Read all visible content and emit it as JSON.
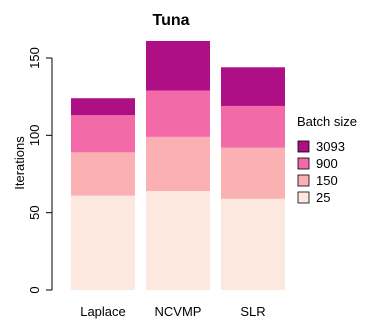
{
  "chart_data": {
    "type": "bar",
    "stacked": true,
    "title": "Tuna",
    "xlabel": "",
    "ylabel": "Iterations",
    "ylim": [
      0,
      162
    ],
    "y_ticks": [
      0,
      50,
      100,
      150
    ],
    "categories": [
      "Laplace",
      "NCVMP",
      "SLR"
    ],
    "legend": {
      "title": "Batch size",
      "position": "right"
    },
    "series": [
      {
        "name": "25",
        "color": "#fde8df",
        "values": [
          61,
          64,
          59
        ]
      },
      {
        "name": "150",
        "color": "#fbb0b4",
        "values": [
          28,
          35,
          33
        ]
      },
      {
        "name": "900",
        "color": "#f26ba8",
        "values": [
          24,
          30,
          27
        ]
      },
      {
        "name": "3093",
        "color": "#ae0f85",
        "values": [
          11,
          32,
          25
        ]
      }
    ],
    "legend_order": [
      "3093",
      "900",
      "150",
      "25"
    ],
    "grid": false
  }
}
